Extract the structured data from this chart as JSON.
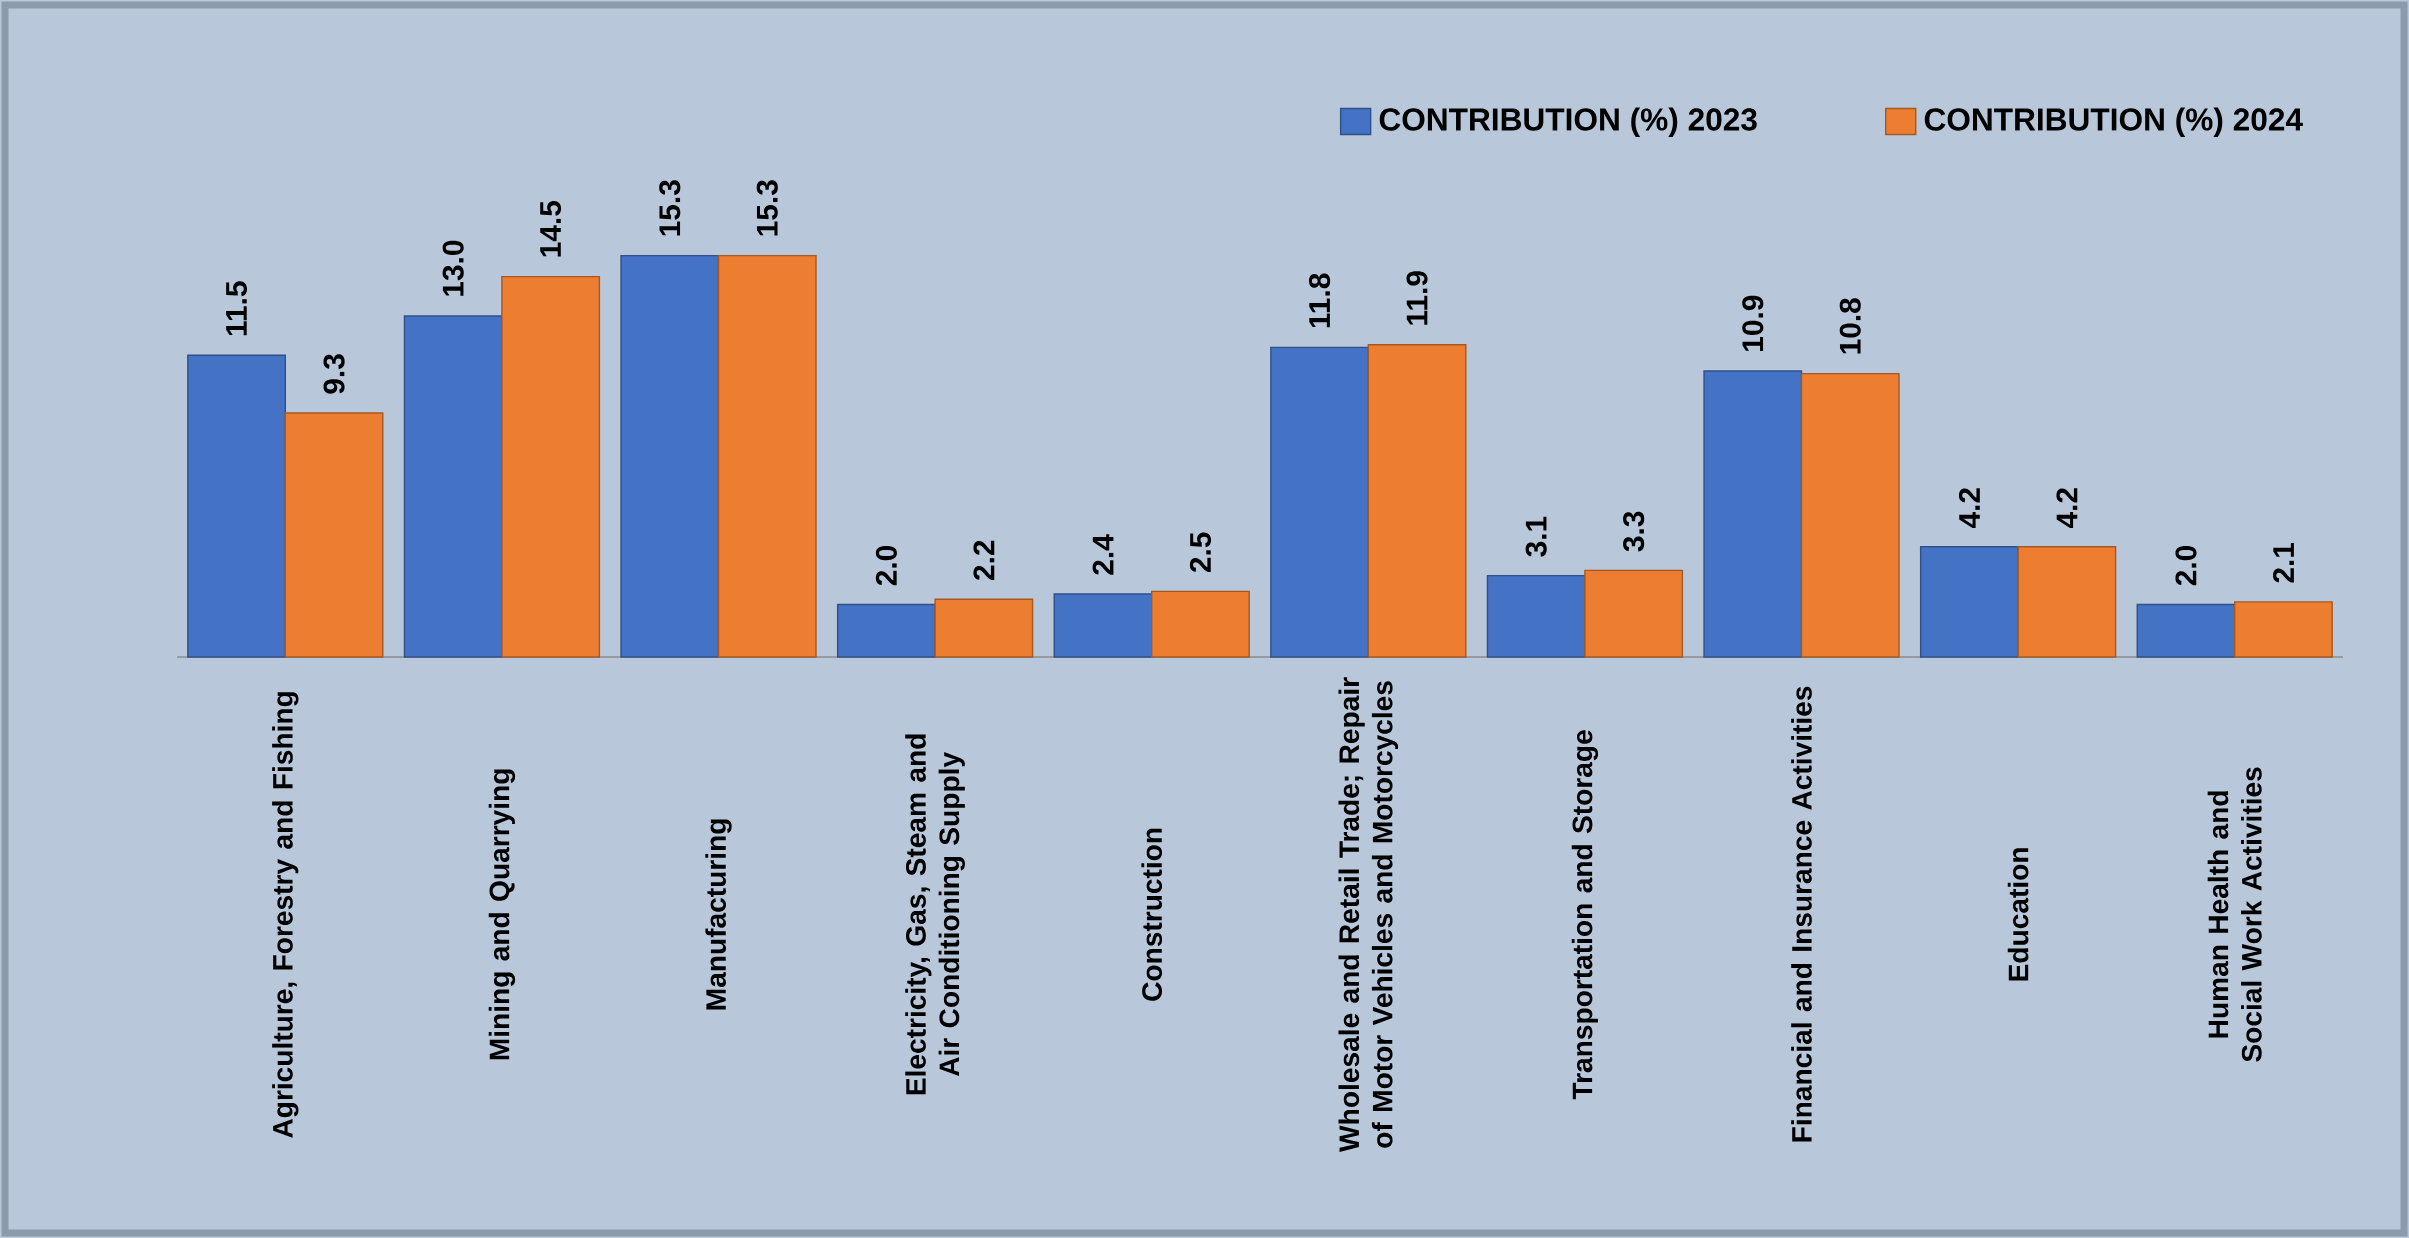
{
  "chart_data": {
    "type": "bar",
    "categories": [
      "Agriculture, Forestry and Fishing",
      "Mining and Quarrying",
      "Manufacturing",
      "Electricity, Gas, Steam and Air Conditioning Supply",
      "Construction",
      "Wholesale and Retail Trade; Repair of Motor Vehicles and Motorcycles",
      "Transportation and Storage",
      "Financial and Insurance Activities",
      "Education",
      "Human Health and Social Work Activities"
    ],
    "series": [
      {
        "name": "CONTRIBUTION (%) 2023",
        "color": "#4472c4",
        "values": [
          11.5,
          13.0,
          15.3,
          2.0,
          2.4,
          11.8,
          3.1,
          10.9,
          4.2,
          2.0
        ],
        "value_labels": [
          "11.5",
          "13.0",
          "15.3",
          "2.0",
          "2.4",
          "11.8",
          "3.1",
          "10.9",
          "4.2",
          "2.0"
        ]
      },
      {
        "name": "CONTRIBUTION (%) 2024",
        "color": "#ed7d31",
        "values": [
          9.3,
          14.5,
          15.3,
          2.2,
          2.5,
          11.9,
          3.3,
          10.8,
          4.2,
          2.1
        ],
        "value_labels": [
          "9.3",
          "14.5",
          "15.3",
          "2.2",
          "2.5",
          "11.9",
          "3.3",
          "10.8",
          "4.2",
          "2.1"
        ]
      }
    ],
    "legend": "top right"
  }
}
